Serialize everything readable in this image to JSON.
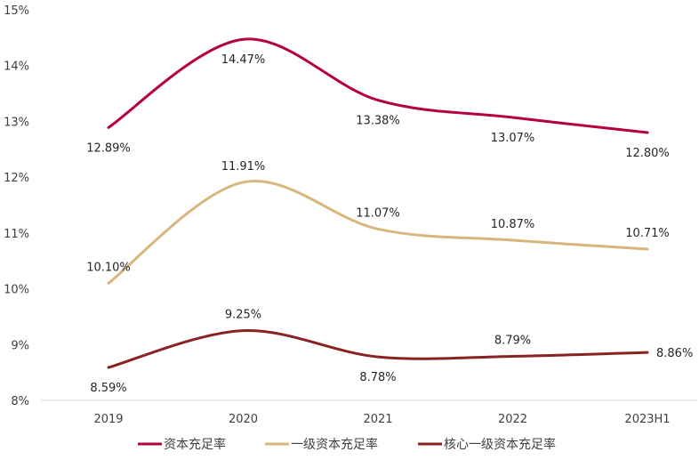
{
  "chart_data": {
    "type": "line",
    "title": "",
    "xlabel": "",
    "ylabel": "",
    "categories": [
      "2019",
      "2020",
      "2021",
      "2022",
      "2023H1"
    ],
    "ylim": [
      8,
      15
    ],
    "yticks": [
      {
        "value": 15,
        "label": "15%"
      },
      {
        "value": 14,
        "label": "14%"
      },
      {
        "value": 13,
        "label": "13%"
      },
      {
        "value": 12,
        "label": "12%"
      },
      {
        "value": 11,
        "label": "11%"
      },
      {
        "value": 10,
        "label": "10%"
      },
      {
        "value": 9,
        "label": "9%"
      },
      {
        "value": 8,
        "label": "8%"
      }
    ],
    "grid": false,
    "legend_position": "bottom",
    "series": [
      {
        "name": "资本充足率",
        "color": "#B5003C",
        "values": [
          12.89,
          14.47,
          13.38,
          13.07,
          12.8
        ],
        "labels": [
          "12.89%",
          "14.47%",
          "13.38%",
          "13.07%",
          "12.80%"
        ],
        "label_placement": [
          "below",
          "below",
          "below",
          "below",
          "below"
        ]
      },
      {
        "name": "一级资本充足率",
        "color": "#D8B67E",
        "values": [
          10.1,
          11.91,
          11.07,
          10.87,
          10.71
        ],
        "labels": [
          "10.10%",
          "11.91%",
          "11.07%",
          "10.87%",
          "10.71%"
        ],
        "label_placement": [
          "above",
          "above",
          "above",
          "above",
          "above"
        ]
      },
      {
        "name": "核心一级资本充足率",
        "color": "#8B2222",
        "values": [
          8.59,
          9.25,
          8.78,
          8.79,
          8.86
        ],
        "labels": [
          "8.59%",
          "9.25%",
          "8.78%",
          "8.79%",
          "8.86%"
        ],
        "label_placement": [
          "below",
          "above",
          "below",
          "above",
          "right"
        ]
      }
    ]
  }
}
